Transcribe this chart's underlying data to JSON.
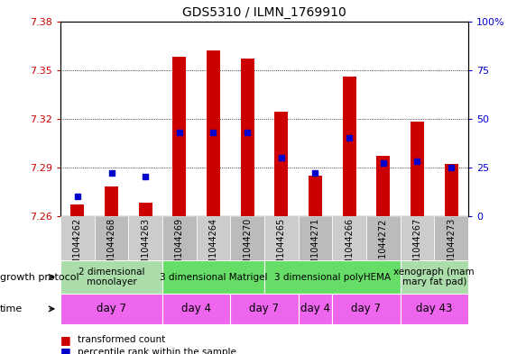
{
  "title": "GDS5310 / ILMN_1769910",
  "samples": [
    "GSM1044262",
    "GSM1044268",
    "GSM1044263",
    "GSM1044269",
    "GSM1044264",
    "GSM1044270",
    "GSM1044265",
    "GSM1044271",
    "GSM1044266",
    "GSM1044272",
    "GSM1044267",
    "GSM1044273"
  ],
  "transformed_counts": [
    7.267,
    7.278,
    7.268,
    7.358,
    7.362,
    7.357,
    7.324,
    7.285,
    7.346,
    7.297,
    7.318,
    7.292
  ],
  "percentile_ranks": [
    10,
    22,
    20,
    43,
    43,
    43,
    30,
    22,
    40,
    27,
    28,
    25
  ],
  "ylim_left": [
    7.26,
    7.38
  ],
  "ylim_right": [
    0,
    100
  ],
  "yticks_left": [
    7.26,
    7.29,
    7.32,
    7.35,
    7.38
  ],
  "yticks_right": [
    0,
    25,
    50,
    75,
    100
  ],
  "bar_color": "#cc0000",
  "marker_color": "#0000cc",
  "bar_base": 7.26,
  "growth_protocol_groups": [
    {
      "label": "2 dimensional\nmonolayer",
      "start": 0,
      "end": 3,
      "color": "#aaddaa"
    },
    {
      "label": "3 dimensional Matrigel",
      "start": 3,
      "end": 6,
      "color": "#66dd66"
    },
    {
      "label": "3 dimensional polyHEMA",
      "start": 6,
      "end": 10,
      "color": "#66dd66"
    },
    {
      "label": "xenograph (mam\nmary fat pad)",
      "start": 10,
      "end": 12,
      "color": "#aaddaa"
    }
  ],
  "time_groups": [
    {
      "label": "day 7",
      "start": 0,
      "end": 3
    },
    {
      "label": "day 4",
      "start": 3,
      "end": 5
    },
    {
      "label": "day 7",
      "start": 5,
      "end": 7
    },
    {
      "label": "day 4",
      "start": 7,
      "end": 8
    },
    {
      "label": "day 7",
      "start": 8,
      "end": 10
    },
    {
      "label": "day 43",
      "start": 10,
      "end": 12
    }
  ],
  "time_color": "#ee66ee",
  "tick_color_left": "#cc0000",
  "tick_color_right": "#0000cc",
  "grid_color": "#000000",
  "sample_bg_color": "#cccccc",
  "plot_bg_color": "#ffffff",
  "bar_width": 0.4
}
